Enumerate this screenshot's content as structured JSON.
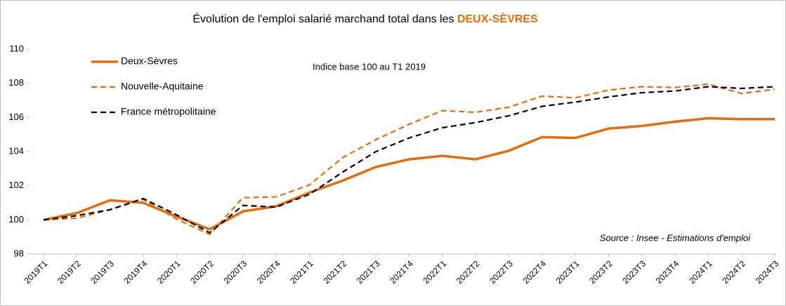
{
  "chart_data": {
    "type": "line",
    "title": "Évolution de l'emploi salarié marchand total dans les ",
    "title_highlight": "DEUX-SÈVRES",
    "subtitle": "Indice base 100 au T1 2019",
    "source": "Source : Insee - Estimations d'emploi",
    "categories": [
      "2019T1",
      "2019T2",
      "2019T3",
      "2019T4",
      "2020T1",
      "2020T2",
      "2020T3",
      "2020T4",
      "2021T1",
      "2021T2",
      "2021T3",
      "2021T4",
      "2022T1",
      "2022T2",
      "2022T3",
      "2022T4",
      "2023T1",
      "2023T2",
      "2023T3",
      "2023T4",
      "2024T1",
      "2024T2",
      "2024T3"
    ],
    "series": [
      {
        "name": "Deux-Sèvres",
        "color": "#e46c0a",
        "dashed": false,
        "values": [
          100,
          100.4,
          101.15,
          101.0,
          100.2,
          99.45,
          100.5,
          100.8,
          101.6,
          102.3,
          103.1,
          103.55,
          103.75,
          103.55,
          104.05,
          104.85,
          104.8,
          105.35,
          105.5,
          105.75,
          105.95,
          105.9,
          105.9
        ]
      },
      {
        "name": "Nouvelle-Aquitaine",
        "color": "#e46c0a",
        "dashed": true,
        "values": [
          100,
          100.1,
          100.6,
          101.2,
          100.05,
          99.15,
          101.3,
          101.35,
          102.05,
          103.65,
          104.7,
          105.6,
          106.4,
          106.3,
          106.6,
          107.25,
          107.15,
          107.6,
          107.8,
          107.75,
          107.95,
          107.4,
          107.65
        ]
      },
      {
        "name": "France métropolitaine",
        "color": "#000000",
        "dashed": true,
        "values": [
          100,
          100.25,
          100.6,
          101.25,
          100.3,
          99.25,
          100.85,
          100.75,
          101.5,
          102.8,
          104.0,
          104.8,
          105.4,
          105.7,
          106.1,
          106.65,
          106.9,
          107.2,
          107.45,
          107.55,
          107.8,
          107.7,
          107.8
        ]
      }
    ],
    "ylim": [
      98,
      110
    ],
    "yticks": [
      98,
      100,
      102,
      104,
      106,
      108,
      110
    ],
    "grid": false,
    "legend": "top-left"
  }
}
